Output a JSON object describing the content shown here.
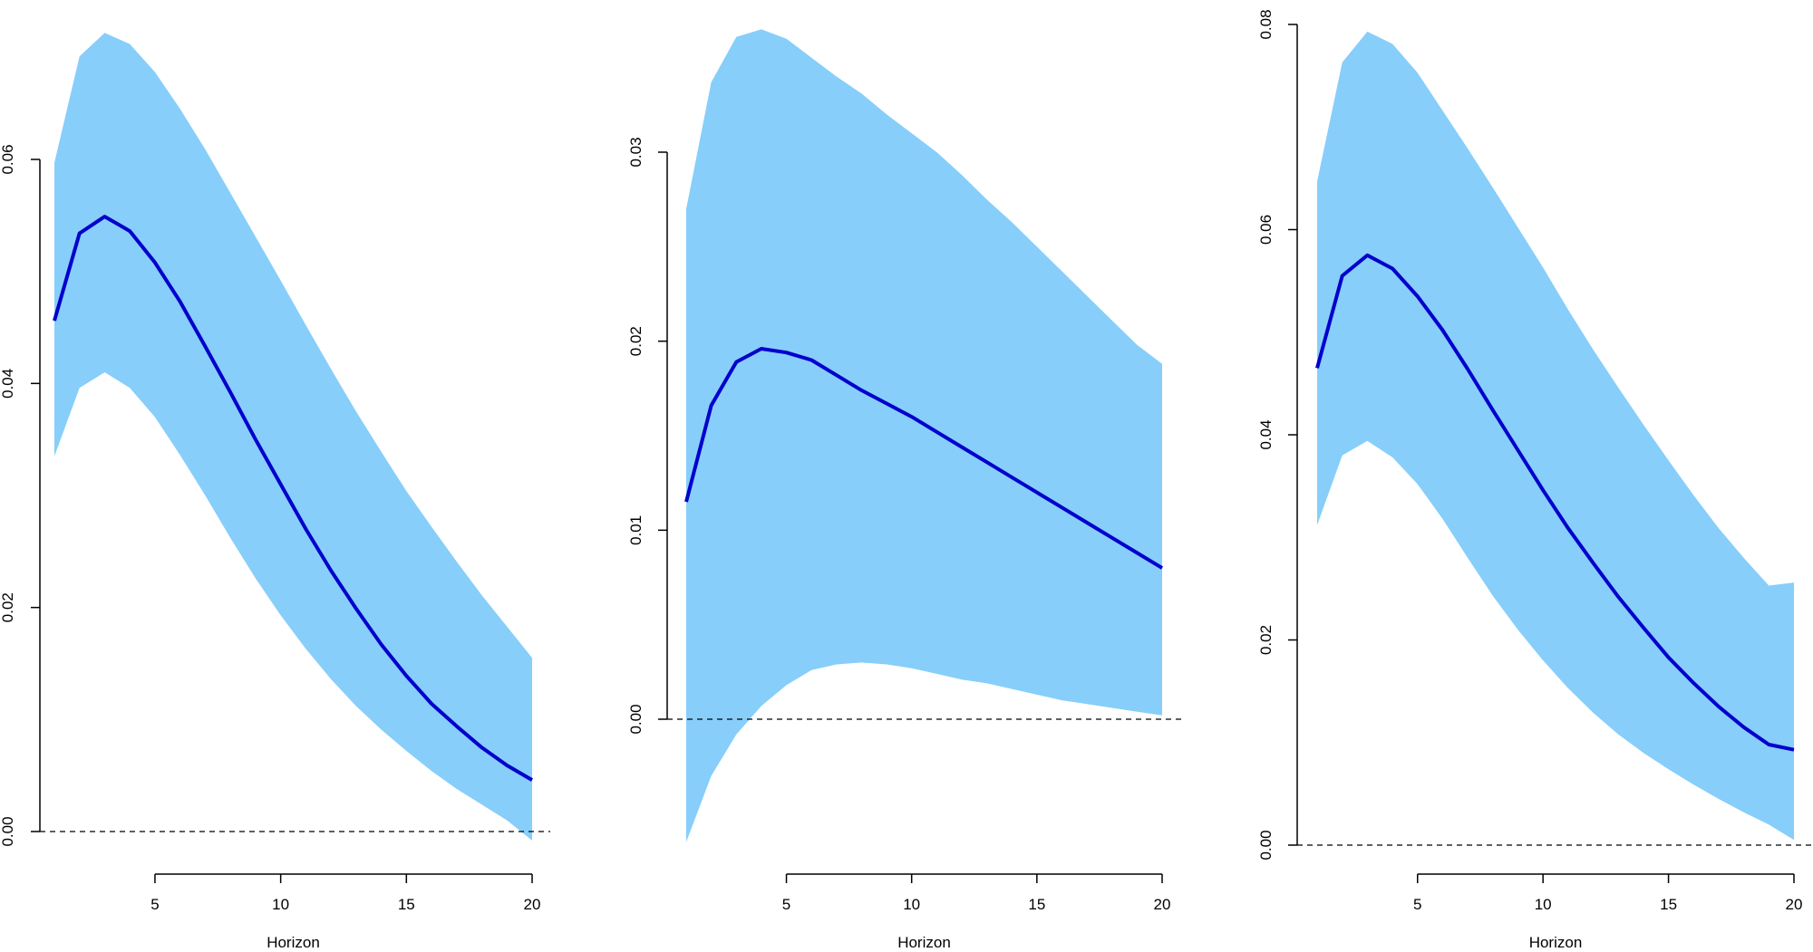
{
  "colors": {
    "band": "#87CEFA",
    "line": "#0000CD",
    "axis": "#000000",
    "zero_line": "#000000",
    "background": "#FFFFFF"
  },
  "chart_data": [
    {
      "type": "area",
      "xlabel": "Horizon",
      "ylabel": "",
      "xticks": [
        5,
        10,
        15,
        20
      ],
      "yticks": [
        0.0,
        0.02,
        0.04,
        0.06
      ],
      "ytick_labels": [
        "0.00",
        "0.02",
        "0.04",
        "0.06"
      ],
      "xlim": [
        1,
        20
      ],
      "ylim": [
        -0.001,
        0.072
      ],
      "zero_line": true,
      "x": [
        1,
        2,
        3,
        4,
        5,
        6,
        7,
        8,
        9,
        10,
        11,
        12,
        13,
        14,
        15,
        16,
        17,
        18,
        19,
        20
      ],
      "series": [
        {
          "role": "median",
          "values": [
            0.0456,
            0.0534,
            0.0549,
            0.0536,
            0.0508,
            0.0473,
            0.0433,
            0.0392,
            0.035,
            0.031,
            0.027,
            0.0233,
            0.0199,
            0.0167,
            0.0139,
            0.0114,
            0.0094,
            0.0075,
            0.0059,
            0.0046
          ]
        },
        {
          "role": "lower",
          "values": [
            0.0335,
            0.0396,
            0.041,
            0.0396,
            0.037,
            0.0336,
            0.03,
            0.0262,
            0.0226,
            0.0193,
            0.0163,
            0.0136,
            0.0112,
            0.0091,
            0.0072,
            0.0054,
            0.0038,
            0.0024,
            0.001,
            -0.0008
          ]
        },
        {
          "role": "upper",
          "values": [
            0.0597,
            0.0692,
            0.0713,
            0.0703,
            0.0678,
            0.0645,
            0.0609,
            0.057,
            0.0531,
            0.0492,
            0.0452,
            0.0413,
            0.0375,
            0.0339,
            0.0304,
            0.0272,
            0.0241,
            0.0211,
            0.0183,
            0.0155
          ]
        }
      ]
    },
    {
      "type": "area",
      "xlabel": "Horizon",
      "ylabel": "",
      "xticks": [
        5,
        10,
        15,
        20
      ],
      "yticks": [
        0.0,
        0.01,
        0.02,
        0.03
      ],
      "ytick_labels": [
        "0.00",
        "0.01",
        "0.02",
        "0.03"
      ],
      "xlim": [
        1,
        20
      ],
      "ylim": [
        -0.0067,
        0.036
      ],
      "zero_line": true,
      "x": [
        1,
        2,
        3,
        4,
        5,
        6,
        7,
        8,
        9,
        10,
        11,
        12,
        13,
        14,
        15,
        16,
        17,
        18,
        19,
        20
      ],
      "series": [
        {
          "role": "median",
          "values": [
            0.0115,
            0.0166,
            0.0189,
            0.0196,
            0.0194,
            0.019,
            0.0182,
            0.0174,
            0.0167,
            0.016,
            0.0152,
            0.0144,
            0.0136,
            0.0128,
            0.012,
            0.0112,
            0.0104,
            0.0096,
            0.0088,
            0.008
          ]
        },
        {
          "role": "lower",
          "values": [
            -0.0065,
            -0.003,
            -0.0008,
            0.0007,
            0.0018,
            0.0026,
            0.0029,
            0.003,
            0.0029,
            0.0027,
            0.0024,
            0.0021,
            0.0019,
            0.0016,
            0.0013,
            0.001,
            0.0008,
            0.0006,
            0.0004,
            0.0002
          ]
        },
        {
          "role": "upper",
          "values": [
            0.027,
            0.0337,
            0.0361,
            0.0365,
            0.036,
            0.035,
            0.034,
            0.0331,
            0.032,
            0.031,
            0.03,
            0.0288,
            0.0275,
            0.0263,
            0.025,
            0.0237,
            0.0224,
            0.0211,
            0.0198,
            0.0188
          ]
        }
      ]
    },
    {
      "type": "area",
      "xlabel": "Horizon",
      "ylabel": "",
      "xticks": [
        5,
        10,
        15,
        20
      ],
      "yticks": [
        0.0,
        0.02,
        0.04,
        0.06,
        0.08
      ],
      "ytick_labels": [
        "0.00",
        "0.02",
        "0.04",
        "0.06",
        "0.08"
      ],
      "xlim": [
        1,
        20
      ],
      "ylim": [
        0.0,
        0.08
      ],
      "zero_line": true,
      "x": [
        1,
        2,
        3,
        4,
        5,
        6,
        7,
        8,
        9,
        10,
        11,
        12,
        13,
        14,
        15,
        16,
        17,
        18,
        19,
        20
      ],
      "series": [
        {
          "role": "median",
          "values": [
            0.0465,
            0.0555,
            0.0575,
            0.0562,
            0.0535,
            0.0502,
            0.0464,
            0.0424,
            0.0385,
            0.0346,
            0.0309,
            0.0275,
            0.0242,
            0.0212,
            0.0183,
            0.0158,
            0.0135,
            0.0115,
            0.0098,
            0.0093
          ]
        },
        {
          "role": "lower",
          "values": [
            0.0312,
            0.038,
            0.0394,
            0.0378,
            0.0352,
            0.0318,
            0.028,
            0.0243,
            0.021,
            0.018,
            0.0153,
            0.0129,
            0.0108,
            0.009,
            0.0074,
            0.0059,
            0.0045,
            0.0032,
            0.002,
            0.0005
          ]
        },
        {
          "role": "upper",
          "values": [
            0.0647,
            0.0763,
            0.0793,
            0.0781,
            0.0753,
            0.0716,
            0.0679,
            0.0641,
            0.0602,
            0.0563,
            0.0522,
            0.0483,
            0.0446,
            0.041,
            0.0375,
            0.0341,
            0.0309,
            0.028,
            0.0253,
            0.0256
          ]
        }
      ]
    }
  ]
}
